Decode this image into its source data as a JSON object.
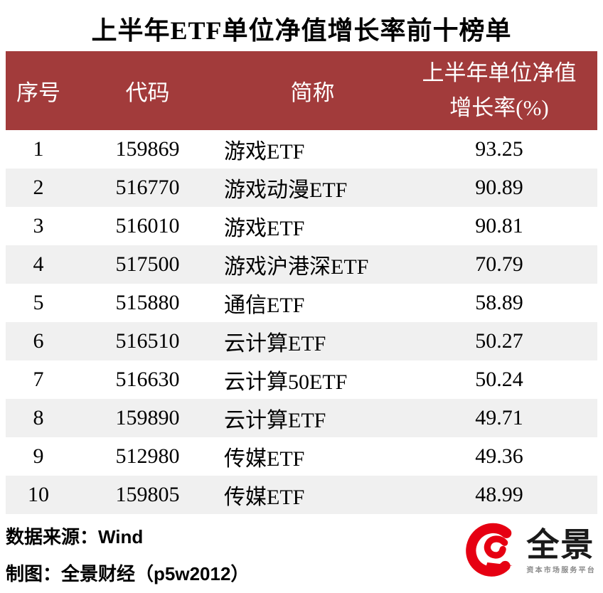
{
  "chart_data": {
    "type": "table",
    "title": "上半年ETF单位净值增长率前十榜单",
    "columns": [
      "序号",
      "代码",
      "简称",
      "上半年单位净值增长率(%)"
    ],
    "column_header_display": {
      "c1": "序号",
      "c2": "代码",
      "c3": "简称",
      "c4_line1": "上半年单位净值",
      "c4_line2": "增长率(%)"
    },
    "rows": [
      {
        "rank": "1",
        "code": "159869",
        "name": "游戏ETF",
        "growth_pct": "93.25"
      },
      {
        "rank": "2",
        "code": "516770",
        "name": "游戏动漫ETF",
        "growth_pct": "90.89"
      },
      {
        "rank": "3",
        "code": "516010",
        "name": "游戏ETF",
        "growth_pct": "90.81"
      },
      {
        "rank": "4",
        "code": "517500",
        "name": "游戏沪港深ETF",
        "growth_pct": "70.79"
      },
      {
        "rank": "5",
        "code": "515880",
        "name": "通信ETF",
        "growth_pct": "58.89"
      },
      {
        "rank": "6",
        "code": "516510",
        "name": "云计算ETF",
        "growth_pct": "50.27"
      },
      {
        "rank": "7",
        "code": "516630",
        "name": "云计算50ETF",
        "growth_pct": "50.24"
      },
      {
        "rank": "8",
        "code": "159890",
        "name": "云计算ETF",
        "growth_pct": "49.71"
      },
      {
        "rank": "9",
        "code": "512980",
        "name": "传媒ETF",
        "growth_pct": "49.36"
      },
      {
        "rank": "10",
        "code": "159805",
        "name": "传媒ETF",
        "growth_pct": "48.99"
      }
    ],
    "layout": {
      "row_striping": "white / light-gray alternating",
      "header_alignment": "center",
      "name_column_alignment": "left"
    }
  },
  "footer": {
    "source_line": "数据来源：Wind",
    "credit_line": "制图：全景财经（p5w2012）",
    "logo": {
      "name": "全景",
      "tagline": "资本市场服务平台"
    }
  },
  "colors": {
    "header_bg": "#A23B3B",
    "header_text": "#FFFFFF",
    "row_alt_bg": "#F0F0F0",
    "logo_red": "#E60012",
    "tagline_gray": "#8A8A8A"
  }
}
